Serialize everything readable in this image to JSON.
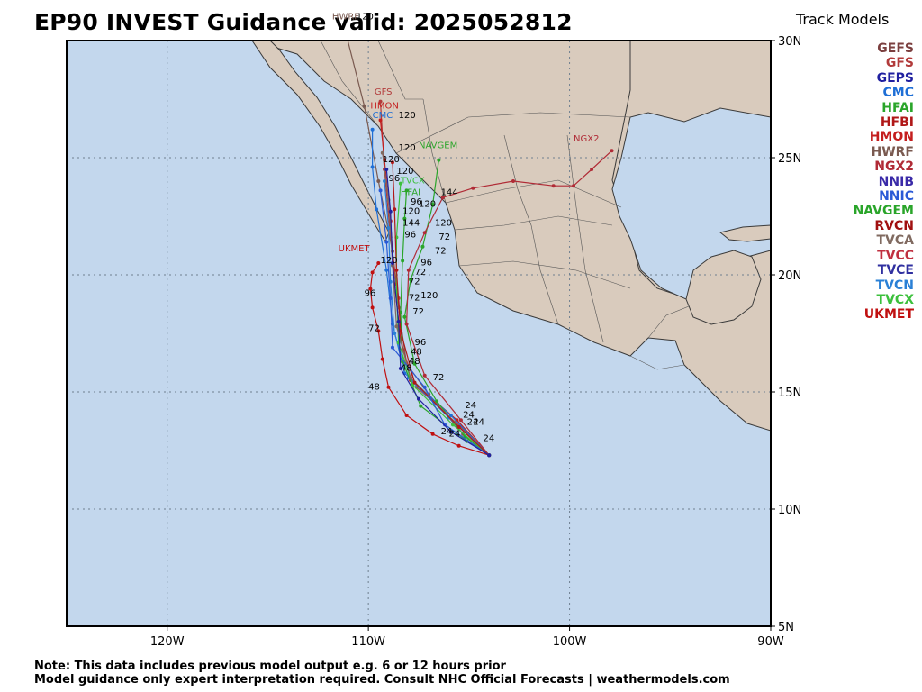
{
  "title": "EP90 INVEST Guidance valid: 2025052812",
  "legend": {
    "title": "Track Models",
    "items": [
      {
        "name": "GEFS",
        "color": "#7b3f3f"
      },
      {
        "name": "GFS",
        "color": "#b23b3b"
      },
      {
        "name": "GEPS",
        "color": "#2020a0"
      },
      {
        "name": "CMC",
        "color": "#1f6fd6"
      },
      {
        "name": "HFAI",
        "color": "#2aa52a"
      },
      {
        "name": "HFBI",
        "color": "#b01818"
      },
      {
        "name": "HMON",
        "color": "#c41e1e"
      },
      {
        "name": "HWRF",
        "color": "#7a5a50"
      },
      {
        "name": "NGX2",
        "color": "#b02b36"
      },
      {
        "name": "NNIB",
        "color": "#3a2aa8"
      },
      {
        "name": "NNIC",
        "color": "#2a5ad6"
      },
      {
        "name": "NAVGEM",
        "color": "#2aa52a"
      },
      {
        "name": "RVCN",
        "color": "#a01010"
      },
      {
        "name": "TVCA",
        "color": "#806a60"
      },
      {
        "name": "TVCC",
        "color": "#c03040"
      },
      {
        "name": "TVCE",
        "color": "#3030a0"
      },
      {
        "name": "TVCN",
        "color": "#2a80d6"
      },
      {
        "name": "TVCX",
        "color": "#3cc03c"
      },
      {
        "name": "UKMET",
        "color": "#c01010"
      }
    ]
  },
  "axes": {
    "lat_labels": [
      "30N",
      "25N",
      "20N",
      "15N",
      "10N",
      "5N"
    ],
    "lon_labels": [
      "120W",
      "110W",
      "100W",
      "90W"
    ]
  },
  "note": {
    "line1": "Note: This data includes previous model output e.g. 6 or 12 hours prior",
    "line2": "Model guidance only expert interpretation required. Consult NHC Official Forecasts | weathermodels.com"
  },
  "colors": {
    "ocean": "#c3d7ed",
    "land": "#d9cbbd",
    "border": "#3a3a3a"
  },
  "chart_data": {
    "type": "scatter",
    "xlim_lon": [
      -125,
      -90
    ],
    "ylim_lat": [
      5,
      30
    ],
    "start": {
      "lon": -104.0,
      "lat": 12.3
    },
    "tracks": [
      {
        "name": "UKMET",
        "color": "#c01010",
        "label": "UKMET",
        "points": [
          [
            -104.0,
            12.3
          ],
          [
            -105.5,
            12.7
          ],
          [
            -106.8,
            13.2
          ],
          [
            -108.1,
            14.0
          ],
          [
            -109.0,
            15.2
          ],
          [
            -109.3,
            16.4
          ],
          [
            -109.5,
            17.6
          ],
          [
            -109.8,
            18.6
          ],
          [
            -109.9,
            19.4
          ],
          [
            -109.8,
            20.1
          ],
          [
            -109.5,
            20.5
          ]
        ],
        "taus": [
          [
            5,
            "48"
          ],
          [
            7,
            "72"
          ],
          [
            9,
            "96"
          ],
          [
            10,
            "120"
          ]
        ]
      },
      {
        "name": "HWRF",
        "color": "#7a5a50",
        "label": "HWRF",
        "points": [
          [
            -104.0,
            12.3
          ],
          [
            -105.3,
            13.2
          ],
          [
            -107.0,
            14.9
          ],
          [
            -108.1,
            16.2
          ],
          [
            -108.5,
            18.6
          ],
          [
            -108.8,
            21.0
          ],
          [
            -109.5,
            24.0
          ],
          [
            -110.2,
            27.2
          ],
          [
            -111.2,
            30.6
          ]
        ],
        "taus": [
          [
            8,
            "120"
          ]
        ]
      },
      {
        "name": "GFS",
        "color": "#b23b3b",
        "label": "GFS",
        "points": [
          [
            -104.0,
            12.3
          ],
          [
            -105.4,
            13.5
          ],
          [
            -107.6,
            15.2
          ],
          [
            -108.3,
            16.8
          ],
          [
            -108.5,
            19.0
          ],
          [
            -108.9,
            21.6
          ],
          [
            -109.2,
            24.5
          ],
          [
            -109.4,
            27.4
          ]
        ],
        "taus": []
      },
      {
        "name": "HMON",
        "color": "#c41e1e",
        "label": "HMON",
        "points": [
          [
            -104.0,
            12.3
          ],
          [
            -105.6,
            13.8
          ],
          [
            -107.9,
            15.5
          ],
          [
            -108.4,
            17.3
          ],
          [
            -108.7,
            19.6
          ],
          [
            -108.9,
            22.3
          ],
          [
            -109.2,
            24.9
          ],
          [
            -109.4,
            26.6
          ]
        ],
        "taus": [
          [
            7,
            "120"
          ]
        ]
      },
      {
        "name": "CMC",
        "color": "#1f6fd6",
        "label": "CMC",
        "points": [
          [
            -104.0,
            12.3
          ],
          [
            -105.9,
            14.0
          ],
          [
            -108.2,
            15.8
          ],
          [
            -108.8,
            17.9
          ],
          [
            -109.1,
            20.2
          ],
          [
            -109.6,
            22.8
          ],
          [
            -109.8,
            24.6
          ],
          [
            -109.8,
            26.2
          ]
        ],
        "taus": []
      },
      {
        "name": "NAVGEM",
        "color": "#2aa52a",
        "label": "NAVGEM",
        "points": [
          [
            -104.0,
            12.3
          ],
          [
            -105.2,
            13.1
          ],
          [
            -106.6,
            14.6
          ],
          [
            -107.7,
            16.2
          ],
          [
            -108.2,
            18.2
          ],
          [
            -107.9,
            19.8
          ],
          [
            -107.3,
            21.2
          ],
          [
            -106.8,
            23.0
          ],
          [
            -106.5,
            24.9
          ]
        ],
        "taus": [
          [
            7,
            "72"
          ],
          [
            8,
            "144"
          ]
        ]
      },
      {
        "name": "NGX2",
        "color": "#b02b36",
        "label": "NGX2",
        "points": [
          [
            -104.0,
            12.3
          ],
          [
            -105.4,
            13.8
          ],
          [
            -107.2,
            15.7
          ],
          [
            -108.1,
            17.9
          ],
          [
            -108.0,
            20.2
          ],
          [
            -107.2,
            21.8
          ],
          [
            -106.3,
            23.3
          ],
          [
            -104.8,
            23.7
          ],
          [
            -102.8,
            24.0
          ],
          [
            -100.8,
            23.8
          ],
          [
            -99.8,
            23.8
          ],
          [
            -98.9,
            24.5
          ],
          [
            -97.9,
            25.3
          ]
        ],
        "taus": [
          [
            9,
            "96"
          ],
          [
            10,
            "120"
          ],
          [
            12,
            "144"
          ]
        ]
      },
      {
        "name": "TVCN",
        "color": "#2a80d6",
        "label": "TVCN",
        "points": [
          [
            -104.0,
            12.3
          ],
          [
            -106.0,
            13.9
          ],
          [
            -108.0,
            15.6
          ],
          [
            -108.7,
            17.5
          ],
          [
            -108.9,
            19.7
          ],
          [
            -109.0,
            22.0
          ],
          [
            -109.2,
            24.0
          ]
        ],
        "taus": []
      },
      {
        "name": "HFAI",
        "color": "#2aa52a",
        "label": "HFAI",
        "points": [
          [
            -104.0,
            12.3
          ],
          [
            -105.1,
            12.9
          ],
          [
            -107.4,
            14.4
          ],
          [
            -108.3,
            16.3
          ],
          [
            -108.4,
            18.4
          ],
          [
            -108.3,
            20.6
          ],
          [
            -108.2,
            22.4
          ],
          [
            -108.1,
            23.6
          ]
        ],
        "taus": []
      },
      {
        "name": "TVCX",
        "color": "#3cc03c",
        "label": "TVCX",
        "points": [
          [
            -104.0,
            12.3
          ],
          [
            -105.8,
            13.6
          ],
          [
            -107.8,
            15.3
          ],
          [
            -108.5,
            17.1
          ],
          [
            -108.6,
            19.3
          ],
          [
            -108.6,
            21.6
          ],
          [
            -108.4,
            23.9
          ]
        ],
        "taus": []
      },
      {
        "name": "TVCA",
        "color": "#806a60",
        "label": "TVCA",
        "points": [
          [
            -104.0,
            12.3
          ],
          [
            -105.7,
            13.7
          ],
          [
            -107.9,
            15.6
          ],
          [
            -108.6,
            17.8
          ],
          [
            -108.8,
            20.4
          ],
          [
            -109.0,
            23.2
          ],
          [
            -109.3,
            25.2
          ]
        ],
        "taus": []
      },
      {
        "name": "HFBI",
        "color": "#b01818",
        "label": "HFBI",
        "points": [
          [
            -104.0,
            12.3
          ],
          [
            -105.5,
            13.5
          ],
          [
            -107.7,
            15.4
          ],
          [
            -108.4,
            17.6
          ],
          [
            -108.6,
            20.2
          ],
          [
            -108.7,
            22.8
          ],
          [
            -108.8,
            24.8
          ]
        ],
        "taus": []
      },
      {
        "name": "NNIC",
        "color": "#2a5ad6",
        "label": "",
        "points": [
          [
            -104.0,
            12.3
          ],
          [
            -106.2,
            13.6
          ],
          [
            -107.2,
            15.2
          ],
          [
            -108.8,
            16.9
          ],
          [
            -108.9,
            19.0
          ],
          [
            -109.1,
            21.4
          ],
          [
            -109.4,
            23.6
          ]
        ],
        "taus": []
      },
      {
        "name": "GEPS",
        "color": "#2020a0",
        "label": "",
        "points": [
          [
            -104.0,
            12.3
          ],
          [
            -105.9,
            13.3
          ],
          [
            -107.5,
            14.7
          ],
          [
            -108.4,
            16.0
          ],
          [
            -108.5,
            18.0
          ],
          [
            -108.8,
            20.5
          ],
          [
            -108.9,
            22.7
          ],
          [
            -109.1,
            24.5
          ]
        ],
        "taus": []
      }
    ],
    "extra_labels": [
      {
        "text": "HWRF",
        "lon": -111.8,
        "lat": 30.9,
        "color": "#7a5a50"
      },
      {
        "text": "GFS",
        "lon": -109.7,
        "lat": 27.7,
        "color": "#b23b3b"
      },
      {
        "text": "HMON",
        "lon": -109.9,
        "lat": 27.1,
        "color": "#c41e1e"
      },
      {
        "text": "CMC",
        "lon": -109.8,
        "lat": 26.7,
        "color": "#1f6fd6"
      },
      {
        "text": "NAVGEM",
        "lon": -107.5,
        "lat": 25.4,
        "color": "#2aa52a"
      },
      {
        "text": "TVCX",
        "lon": -108.4,
        "lat": 23.9,
        "color": "#3cc03c"
      },
      {
        "text": "HFAI",
        "lon": -108.4,
        "lat": 23.4,
        "color": "#2aa52a"
      },
      {
        "text": "NGX2",
        "lon": -99.8,
        "lat": 25.7,
        "color": "#b02b36"
      },
      {
        "text": "UKMET",
        "lon": -111.5,
        "lat": 21.0,
        "color": "#c01010"
      }
    ],
    "tau_labels": [
      {
        "text": "120",
        "lon": -110.6,
        "lat": 30.9
      },
      {
        "text": "120",
        "lon": -108.5,
        "lat": 26.7
      },
      {
        "text": "120",
        "lon": -108.5,
        "lat": 25.3
      },
      {
        "text": "120",
        "lon": -109.3,
        "lat": 24.8
      },
      {
        "text": "120",
        "lon": -108.6,
        "lat": 24.3
      },
      {
        "text": "96",
        "lon": -109.0,
        "lat": 24.0
      },
      {
        "text": "96",
        "lon": -107.9,
        "lat": 23.0
      },
      {
        "text": "120",
        "lon": -108.3,
        "lat": 22.6
      },
      {
        "text": "120",
        "lon": -107.5,
        "lat": 22.9
      },
      {
        "text": "144",
        "lon": -106.4,
        "lat": 23.4
      },
      {
        "text": "144",
        "lon": -108.3,
        "lat": 22.1
      },
      {
        "text": "120",
        "lon": -106.7,
        "lat": 22.1
      },
      {
        "text": "96",
        "lon": -108.2,
        "lat": 21.6
      },
      {
        "text": "72",
        "lon": -106.5,
        "lat": 21.5
      },
      {
        "text": "72",
        "lon": -106.7,
        "lat": 20.9
      },
      {
        "text": "120",
        "lon": -109.4,
        "lat": 20.5
      },
      {
        "text": "96",
        "lon": -107.4,
        "lat": 20.4
      },
      {
        "text": "72",
        "lon": -107.7,
        "lat": 20.0
      },
      {
        "text": "72",
        "lon": -108.0,
        "lat": 19.6
      },
      {
        "text": "96",
        "lon": -110.2,
        "lat": 19.1
      },
      {
        "text": "120",
        "lon": -107.4,
        "lat": 19.0
      },
      {
        "text": "72",
        "lon": -108.0,
        "lat": 18.9
      },
      {
        "text": "72",
        "lon": -107.8,
        "lat": 18.3
      },
      {
        "text": "72",
        "lon": -110.0,
        "lat": 17.6
      },
      {
        "text": "96",
        "lon": -107.7,
        "lat": 17.0
      },
      {
        "text": "48",
        "lon": -107.9,
        "lat": 16.6
      },
      {
        "text": "48",
        "lon": -108.0,
        "lat": 16.2
      },
      {
        "text": "48",
        "lon": -108.4,
        "lat": 15.9
      },
      {
        "text": "48",
        "lon": -110.0,
        "lat": 15.1
      },
      {
        "text": "72",
        "lon": -106.8,
        "lat": 15.5
      },
      {
        "text": "24",
        "lon": -105.2,
        "lat": 14.3
      },
      {
        "text": "24",
        "lon": -105.3,
        "lat": 13.9
      },
      {
        "text": "24",
        "lon": -105.1,
        "lat": 13.6
      },
      {
        "text": "24",
        "lon": -104.8,
        "lat": 13.6
      },
      {
        "text": "24",
        "lon": -106.4,
        "lat": 13.2
      },
      {
        "text": "24",
        "lon": -106.0,
        "lat": 13.1
      },
      {
        "text": "24",
        "lon": -104.3,
        "lat": 12.9
      }
    ]
  }
}
